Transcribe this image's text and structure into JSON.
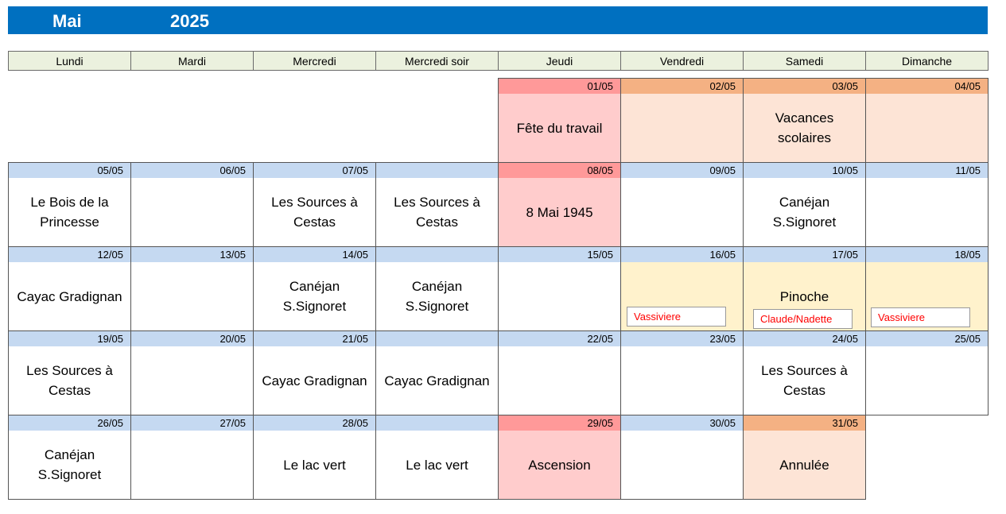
{
  "title": {
    "month": "Mai",
    "year": "2025"
  },
  "weekdays": [
    "Lundi",
    "Mardi",
    "Mercredi",
    "Mercredi soir",
    "Jeudi",
    "Vendredi",
    "Samedi",
    "Dimanche"
  ],
  "weeks": [
    [
      {
        "date": "",
        "text": ""
      },
      {
        "date": "",
        "text": ""
      },
      {
        "date": "",
        "text": ""
      },
      {
        "date": "",
        "text": ""
      },
      {
        "date": "01/05",
        "text": "Fête du travail",
        "color": "#ffcccc"
      },
      {
        "date": "02/05",
        "text": "",
        "color": "#fde4d6"
      },
      {
        "date": "03/05",
        "text": "Vacances scolaires",
        "color": "#fde4d6"
      },
      {
        "date": "04/05",
        "text": "",
        "color": "#fde4d6"
      }
    ],
    [
      {
        "date": "05/05",
        "text": "Le Bois de la Princesse"
      },
      {
        "date": "06/05",
        "text": ""
      },
      {
        "date": "07/05",
        "text": "Les Sources à Cestas"
      },
      {
        "date": "",
        "text": "Les Sources à Cestas"
      },
      {
        "date": "08/05",
        "text": "8 Mai 1945",
        "color": "#ffcccc"
      },
      {
        "date": "09/05",
        "text": ""
      },
      {
        "date": "10/05",
        "text": "Canéjan S.Signoret"
      },
      {
        "date": "11/05",
        "text": ""
      }
    ],
    [
      {
        "date": "12/05",
        "text": "Cayac Gradignan"
      },
      {
        "date": "13/05",
        "text": ""
      },
      {
        "date": "14/05",
        "text": "Canéjan S.Signoret"
      },
      {
        "date": "",
        "text": "Canéjan S.Signoret"
      },
      {
        "date": "15/05",
        "text": ""
      },
      {
        "date": "16/05",
        "text": "",
        "note": "Vassiviere",
        "color": "#fff2cc"
      },
      {
        "date": "17/05",
        "text": "Pinoche",
        "note": "Claude/Nadette",
        "color": "#fff2cc"
      },
      {
        "date": "18/05",
        "text": "",
        "note": "Vassiviere",
        "color": "#fff2cc"
      }
    ],
    [
      {
        "date": "19/05",
        "text": "Les Sources à Cestas"
      },
      {
        "date": "20/05",
        "text": ""
      },
      {
        "date": "21/05",
        "text": "Cayac Gradignan"
      },
      {
        "date": "",
        "text": "Cayac Gradignan"
      },
      {
        "date": "22/05",
        "text": ""
      },
      {
        "date": "23/05",
        "text": ""
      },
      {
        "date": "24/05",
        "text": "Les Sources à Cestas"
      },
      {
        "date": "25/05",
        "text": ""
      }
    ],
    [
      {
        "date": "26/05",
        "text": "Canéjan S.Signoret"
      },
      {
        "date": "27/05",
        "text": ""
      },
      {
        "date": "28/05",
        "text": "Le lac vert"
      },
      {
        "date": "",
        "text": "Le lac vert"
      },
      {
        "date": "29/05",
        "text": "Ascension",
        "color": "#ffcccc"
      },
      {
        "date": "30/05",
        "text": ""
      },
      {
        "date": "31/05",
        "text": "Annulée",
        "color": "#fde4d6"
      }
    ]
  ]
}
